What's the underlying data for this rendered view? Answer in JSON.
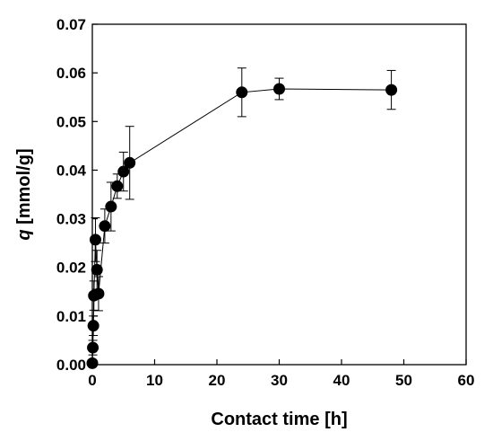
{
  "chart_data": {
    "type": "scatter",
    "title": "",
    "xlabel": "Contact time [h]",
    "ylabel_var": "q",
    "ylabel_unit": " [mmol/g]",
    "xlim": [
      0,
      60
    ],
    "ylim": [
      0,
      0.07
    ],
    "x_ticks": [
      0,
      10,
      20,
      30,
      40,
      50,
      60
    ],
    "y_ticks": [
      0,
      0.01,
      0.02,
      0.03,
      0.04,
      0.05,
      0.06,
      0.07
    ],
    "x_tick_labels": [
      "0",
      "10",
      "20",
      "30",
      "40",
      "50",
      "60"
    ],
    "y_tick_labels": [
      "0.00",
      "0.01",
      "0.02",
      "0.03",
      "0.04",
      "0.05",
      "0.06",
      "0.07"
    ],
    "grid": false,
    "legend": "none",
    "marker": "filled-circle",
    "connected": true,
    "color": "#000000",
    "series": [
      {
        "x": [
          0.0,
          0.083,
          0.167,
          0.25,
          0.5,
          0.75,
          1.0,
          2.0,
          3.0,
          4.0,
          5.0,
          6.0,
          24.0,
          30.0,
          48.0
        ],
        "y": [
          0.0003,
          0.0035,
          0.008,
          0.0142,
          0.0257,
          0.0195,
          0.0146,
          0.0285,
          0.0325,
          0.0367,
          0.0397,
          0.0415,
          0.056,
          0.0567,
          0.0565
        ],
        "err": [
          0.0005,
          0.0015,
          0.002,
          0.003,
          0.0045,
          0.004,
          0.0035,
          0.0035,
          0.005,
          0.0025,
          0.004,
          0.0075,
          0.005,
          0.0022,
          0.004
        ]
      }
    ]
  }
}
